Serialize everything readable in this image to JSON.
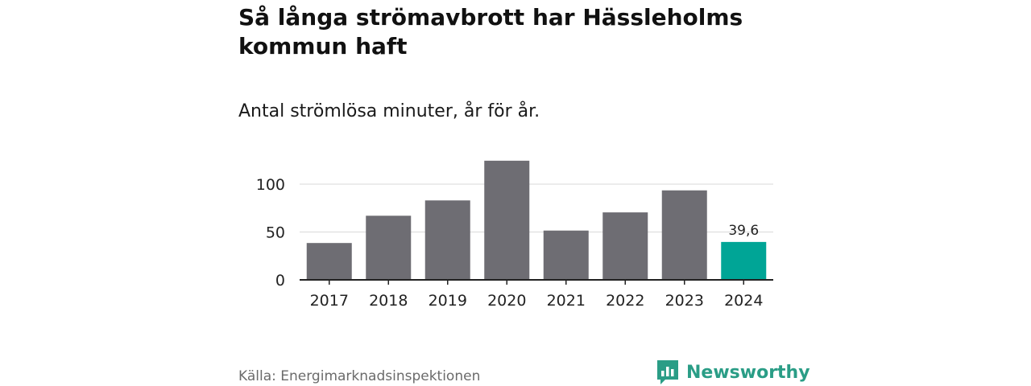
{
  "title": "Så långa strömavbrott har Hässleholms kommun haft",
  "subtitle": "Antal strömlösa minuter, år för år.",
  "source": "Källa: Energimarknadsinspektionen",
  "brand": "Newsworthy",
  "colors": {
    "bar": "#6e6d73",
    "highlight": "#00a596",
    "grid": "#d9d9d9",
    "axis": "#222222",
    "brand": "#2a9d86"
  },
  "chart_data": {
    "type": "bar",
    "title": "Så långa strömavbrott har Hässleholms kommun haft",
    "subtitle": "Antal strömlösa minuter, år för år.",
    "xlabel": "",
    "ylabel": "",
    "categories": [
      "2017",
      "2018",
      "2019",
      "2020",
      "2021",
      "2022",
      "2023",
      "2024"
    ],
    "values": [
      38.5,
      67,
      83,
      124.5,
      51.5,
      70.5,
      93.5,
      39.6
    ],
    "highlight_index": 7,
    "data_labels": [
      {
        "index": 7,
        "text": "39,6"
      }
    ],
    "ylim": [
      0,
      125
    ],
    "yticks": [
      0,
      50,
      100
    ],
    "ytick_labels": [
      "0",
      "50",
      "100"
    ],
    "grid": true
  }
}
